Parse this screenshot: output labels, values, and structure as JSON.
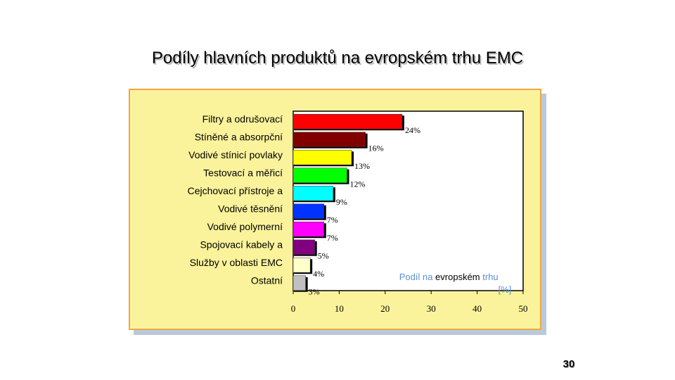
{
  "slide": {
    "title": "Podíly hlavních produktů na evropském trhu EMC",
    "page_number": "30"
  },
  "chart_data": {
    "type": "bar",
    "orientation": "horizontal",
    "categories": [
      "Filtry a odrušovací",
      "Stíněné a absorpční",
      "Vodivé stínicí povlaky",
      "Testovací a měřicí",
      "Cejchovací přístroje a",
      "Vodivé těsnění",
      "Vodivé polymerní",
      "Spojovací kabely a",
      "Služby v oblasti EMC",
      "Ostatní"
    ],
    "values": [
      24,
      16,
      13,
      12,
      9,
      7,
      7,
      5,
      4,
      3
    ],
    "data_labels": [
      "24%",
      "16%",
      "13%",
      "12%",
      "9%",
      "7%",
      "7%",
      "5%",
      "4%",
      "3%"
    ],
    "bar_colors": [
      "#ff0000",
      "#800000",
      "#ffff00",
      "#00ff00",
      "#00ffff",
      "#0033ff",
      "#ff00ff",
      "#800080",
      "#ffffcc",
      "#c0c0c0"
    ],
    "xlim": [
      0,
      50
    ],
    "xticks": [
      0,
      10,
      20,
      30,
      40,
      50
    ],
    "xlabel": "Podíl na evropském trhu [%]",
    "xlabel_colors": {
      "highlight": "#000000",
      "muted": "#5a8fd6"
    },
    "grid": false,
    "legend": "none"
  }
}
